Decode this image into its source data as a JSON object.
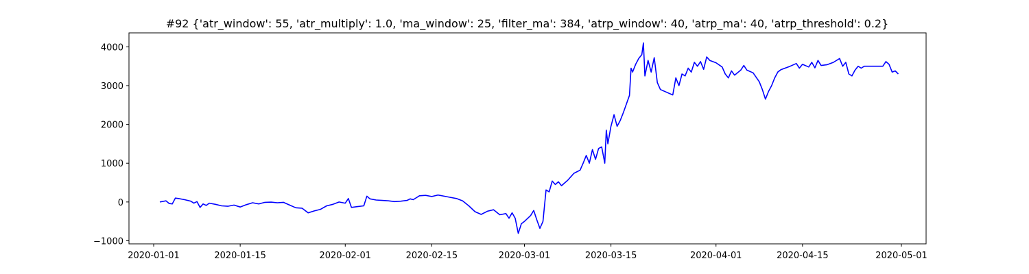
{
  "chart_data": {
    "type": "line",
    "title": "#92 {'atr_window': 55, 'atr_multiply': 1.0, 'ma_window': 25, 'filter_ma': 384, 'atrp_window': 40, 'atrp_ma': 40, 'atrp_threshold': 0.2}",
    "xlabel": "",
    "ylabel": "",
    "x_type": "date",
    "xlim": [
      "2019-12-28",
      "2020-05-05"
    ],
    "ylim": [
      -1080,
      4360
    ],
    "x_ticks": [
      "2020-01-01",
      "2020-01-15",
      "2020-02-01",
      "2020-02-15",
      "2020-03-01",
      "2020-03-15",
      "2020-04-01",
      "2020-04-15",
      "2020-05-01"
    ],
    "y_ticks": [
      -1000,
      0,
      1000,
      2000,
      3000,
      4000
    ],
    "y_tick_labels": [
      "−1000",
      "0",
      "1000",
      "2000",
      "3000",
      "4000"
    ],
    "grid": false,
    "legend": "none",
    "series": [
      {
        "color": "#0000ff",
        "points": [
          [
            "2020-01-02",
            0
          ],
          [
            "2020-01-03",
            30
          ],
          [
            "2020-01-03 12:00",
            -40
          ],
          [
            "2020-01-04",
            -50
          ],
          [
            "2020-01-04 12:00",
            100
          ],
          [
            "2020-01-05",
            90
          ],
          [
            "2020-01-06",
            60
          ],
          [
            "2020-01-07",
            20
          ],
          [
            "2020-01-07 12:00",
            -30
          ],
          [
            "2020-01-08",
            10
          ],
          [
            "2020-01-08 12:00",
            -140
          ],
          [
            "2020-01-09",
            -50
          ],
          [
            "2020-01-09 12:00",
            -90
          ],
          [
            "2020-01-10",
            -30
          ],
          [
            "2020-01-11",
            -60
          ],
          [
            "2020-01-12",
            -100
          ],
          [
            "2020-01-13",
            -110
          ],
          [
            "2020-01-14",
            -80
          ],
          [
            "2020-01-15",
            -130
          ],
          [
            "2020-01-16",
            -70
          ],
          [
            "2020-01-17",
            -20
          ],
          [
            "2020-01-18",
            -50
          ],
          [
            "2020-01-19",
            -10
          ],
          [
            "2020-01-20",
            -5
          ],
          [
            "2020-01-21",
            -20
          ],
          [
            "2020-01-22",
            -10
          ],
          [
            "2020-01-23",
            -80
          ],
          [
            "2020-01-24",
            -150
          ],
          [
            "2020-01-25",
            -160
          ],
          [
            "2020-01-26",
            -280
          ],
          [
            "2020-01-27",
            -230
          ],
          [
            "2020-01-28",
            -190
          ],
          [
            "2020-01-29",
            -100
          ],
          [
            "2020-01-30",
            -60
          ],
          [
            "2020-01-31",
            0
          ],
          [
            "2020-02-01",
            -30
          ],
          [
            "2020-02-01 12:00",
            90
          ],
          [
            "2020-02-02",
            -140
          ],
          [
            "2020-02-03",
            -120
          ],
          [
            "2020-02-04",
            -100
          ],
          [
            "2020-02-04 12:00",
            150
          ],
          [
            "2020-02-05",
            80
          ],
          [
            "2020-02-06",
            50
          ],
          [
            "2020-02-07",
            40
          ],
          [
            "2020-02-08",
            30
          ],
          [
            "2020-02-09",
            10
          ],
          [
            "2020-02-10",
            20
          ],
          [
            "2020-02-11",
            40
          ],
          [
            "2020-02-11 12:00",
            80
          ],
          [
            "2020-02-12",
            60
          ],
          [
            "2020-02-13",
            160
          ],
          [
            "2020-02-14",
            170
          ],
          [
            "2020-02-15",
            140
          ],
          [
            "2020-02-16",
            180
          ],
          [
            "2020-02-17",
            150
          ],
          [
            "2020-02-18",
            120
          ],
          [
            "2020-02-19",
            90
          ],
          [
            "2020-02-20",
            30
          ],
          [
            "2020-02-21",
            -100
          ],
          [
            "2020-02-22",
            -250
          ],
          [
            "2020-02-23",
            -320
          ],
          [
            "2020-02-24",
            -240
          ],
          [
            "2020-02-25",
            -200
          ],
          [
            "2020-02-26",
            -330
          ],
          [
            "2020-02-27",
            -300
          ],
          [
            "2020-02-27 12:00",
            -420
          ],
          [
            "2020-02-28",
            -280
          ],
          [
            "2020-02-28 12:00",
            -420
          ],
          [
            "2020-02-29",
            -810
          ],
          [
            "2020-02-29 12:00",
            -560
          ],
          [
            "2020-03-01",
            -500
          ],
          [
            "2020-03-02",
            -350
          ],
          [
            "2020-03-02 12:00",
            -220
          ],
          [
            "2020-03-03",
            -460
          ],
          [
            "2020-03-03 12:00",
            -680
          ],
          [
            "2020-03-04",
            -500
          ],
          [
            "2020-03-04 12:00",
            310
          ],
          [
            "2020-03-05",
            260
          ],
          [
            "2020-03-05 12:00",
            540
          ],
          [
            "2020-03-06",
            450
          ],
          [
            "2020-03-06 12:00",
            520
          ],
          [
            "2020-03-07",
            420
          ],
          [
            "2020-03-08",
            560
          ],
          [
            "2020-03-09",
            740
          ],
          [
            "2020-03-10",
            820
          ],
          [
            "2020-03-10 12:00",
            1000
          ],
          [
            "2020-03-11",
            1200
          ],
          [
            "2020-03-11 12:00",
            1000
          ],
          [
            "2020-03-12",
            1350
          ],
          [
            "2020-03-12 12:00",
            1100
          ],
          [
            "2020-03-13",
            1380
          ],
          [
            "2020-03-13 12:00",
            1420
          ],
          [
            "2020-03-14",
            1000
          ],
          [
            "2020-03-14 06:00",
            1850
          ],
          [
            "2020-03-14 12:00",
            1500
          ],
          [
            "2020-03-15",
            1950
          ],
          [
            "2020-03-15 12:00",
            2250
          ],
          [
            "2020-03-16",
            1950
          ],
          [
            "2020-03-16 12:00",
            2100
          ],
          [
            "2020-03-17",
            2300
          ],
          [
            "2020-03-18",
            2750
          ],
          [
            "2020-03-18 06:00",
            3450
          ],
          [
            "2020-03-18 12:00",
            3350
          ],
          [
            "2020-03-19",
            3550
          ],
          [
            "2020-03-19 12:00",
            3700
          ],
          [
            "2020-03-20",
            3800
          ],
          [
            "2020-03-20 06:00",
            4100
          ],
          [
            "2020-03-20 12:00",
            3250
          ],
          [
            "2020-03-21",
            3650
          ],
          [
            "2020-03-21 12:00",
            3350
          ],
          [
            "2020-03-22",
            3720
          ],
          [
            "2020-03-22 12:00",
            3080
          ],
          [
            "2020-03-23",
            2900
          ],
          [
            "2020-03-25",
            2760
          ],
          [
            "2020-03-25 12:00",
            3200
          ],
          [
            "2020-03-26",
            3000
          ],
          [
            "2020-03-26 12:00",
            3300
          ],
          [
            "2020-03-27",
            3250
          ],
          [
            "2020-03-27 12:00",
            3450
          ],
          [
            "2020-03-28",
            3350
          ],
          [
            "2020-03-28 12:00",
            3600
          ],
          [
            "2020-03-29",
            3500
          ],
          [
            "2020-03-29 12:00",
            3620
          ],
          [
            "2020-03-30",
            3420
          ],
          [
            "2020-03-30 12:00",
            3740
          ],
          [
            "2020-03-31",
            3650
          ],
          [
            "2020-04-01",
            3590
          ],
          [
            "2020-04-02",
            3480
          ],
          [
            "2020-04-02 12:00",
            3300
          ],
          [
            "2020-04-03",
            3200
          ],
          [
            "2020-04-03 12:00",
            3380
          ],
          [
            "2020-04-04",
            3270
          ],
          [
            "2020-04-05",
            3400
          ],
          [
            "2020-04-05 12:00",
            3520
          ],
          [
            "2020-04-06",
            3400
          ],
          [
            "2020-04-07",
            3330
          ],
          [
            "2020-04-08",
            3100
          ],
          [
            "2020-04-08 12:00",
            2900
          ],
          [
            "2020-04-09",
            2650
          ],
          [
            "2020-04-09 12:00",
            2850
          ],
          [
            "2020-04-10",
            3000
          ],
          [
            "2020-04-10 12:00",
            3200
          ],
          [
            "2020-04-11",
            3350
          ],
          [
            "2020-04-11 12:00",
            3410
          ],
          [
            "2020-04-13",
            3500
          ],
          [
            "2020-04-14",
            3570
          ],
          [
            "2020-04-14 12:00",
            3450
          ],
          [
            "2020-04-15",
            3550
          ],
          [
            "2020-04-16",
            3480
          ],
          [
            "2020-04-16 12:00",
            3600
          ],
          [
            "2020-04-17",
            3460
          ],
          [
            "2020-04-17 12:00",
            3650
          ],
          [
            "2020-04-18",
            3520
          ],
          [
            "2020-04-19",
            3540
          ],
          [
            "2020-04-20",
            3600
          ],
          [
            "2020-04-21",
            3700
          ],
          [
            "2020-04-21 12:00",
            3500
          ],
          [
            "2020-04-22",
            3600
          ],
          [
            "2020-04-22 12:00",
            3300
          ],
          [
            "2020-04-23",
            3250
          ],
          [
            "2020-04-23 12:00",
            3400
          ],
          [
            "2020-04-24",
            3500
          ],
          [
            "2020-04-24 12:00",
            3450
          ],
          [
            "2020-04-25",
            3500
          ],
          [
            "2020-04-28",
            3500
          ],
          [
            "2020-04-28 12:00",
            3620
          ],
          [
            "2020-04-29",
            3550
          ],
          [
            "2020-04-29 12:00",
            3350
          ],
          [
            "2020-04-30",
            3380
          ],
          [
            "2020-04-30 12:00",
            3300
          ]
        ]
      }
    ]
  }
}
